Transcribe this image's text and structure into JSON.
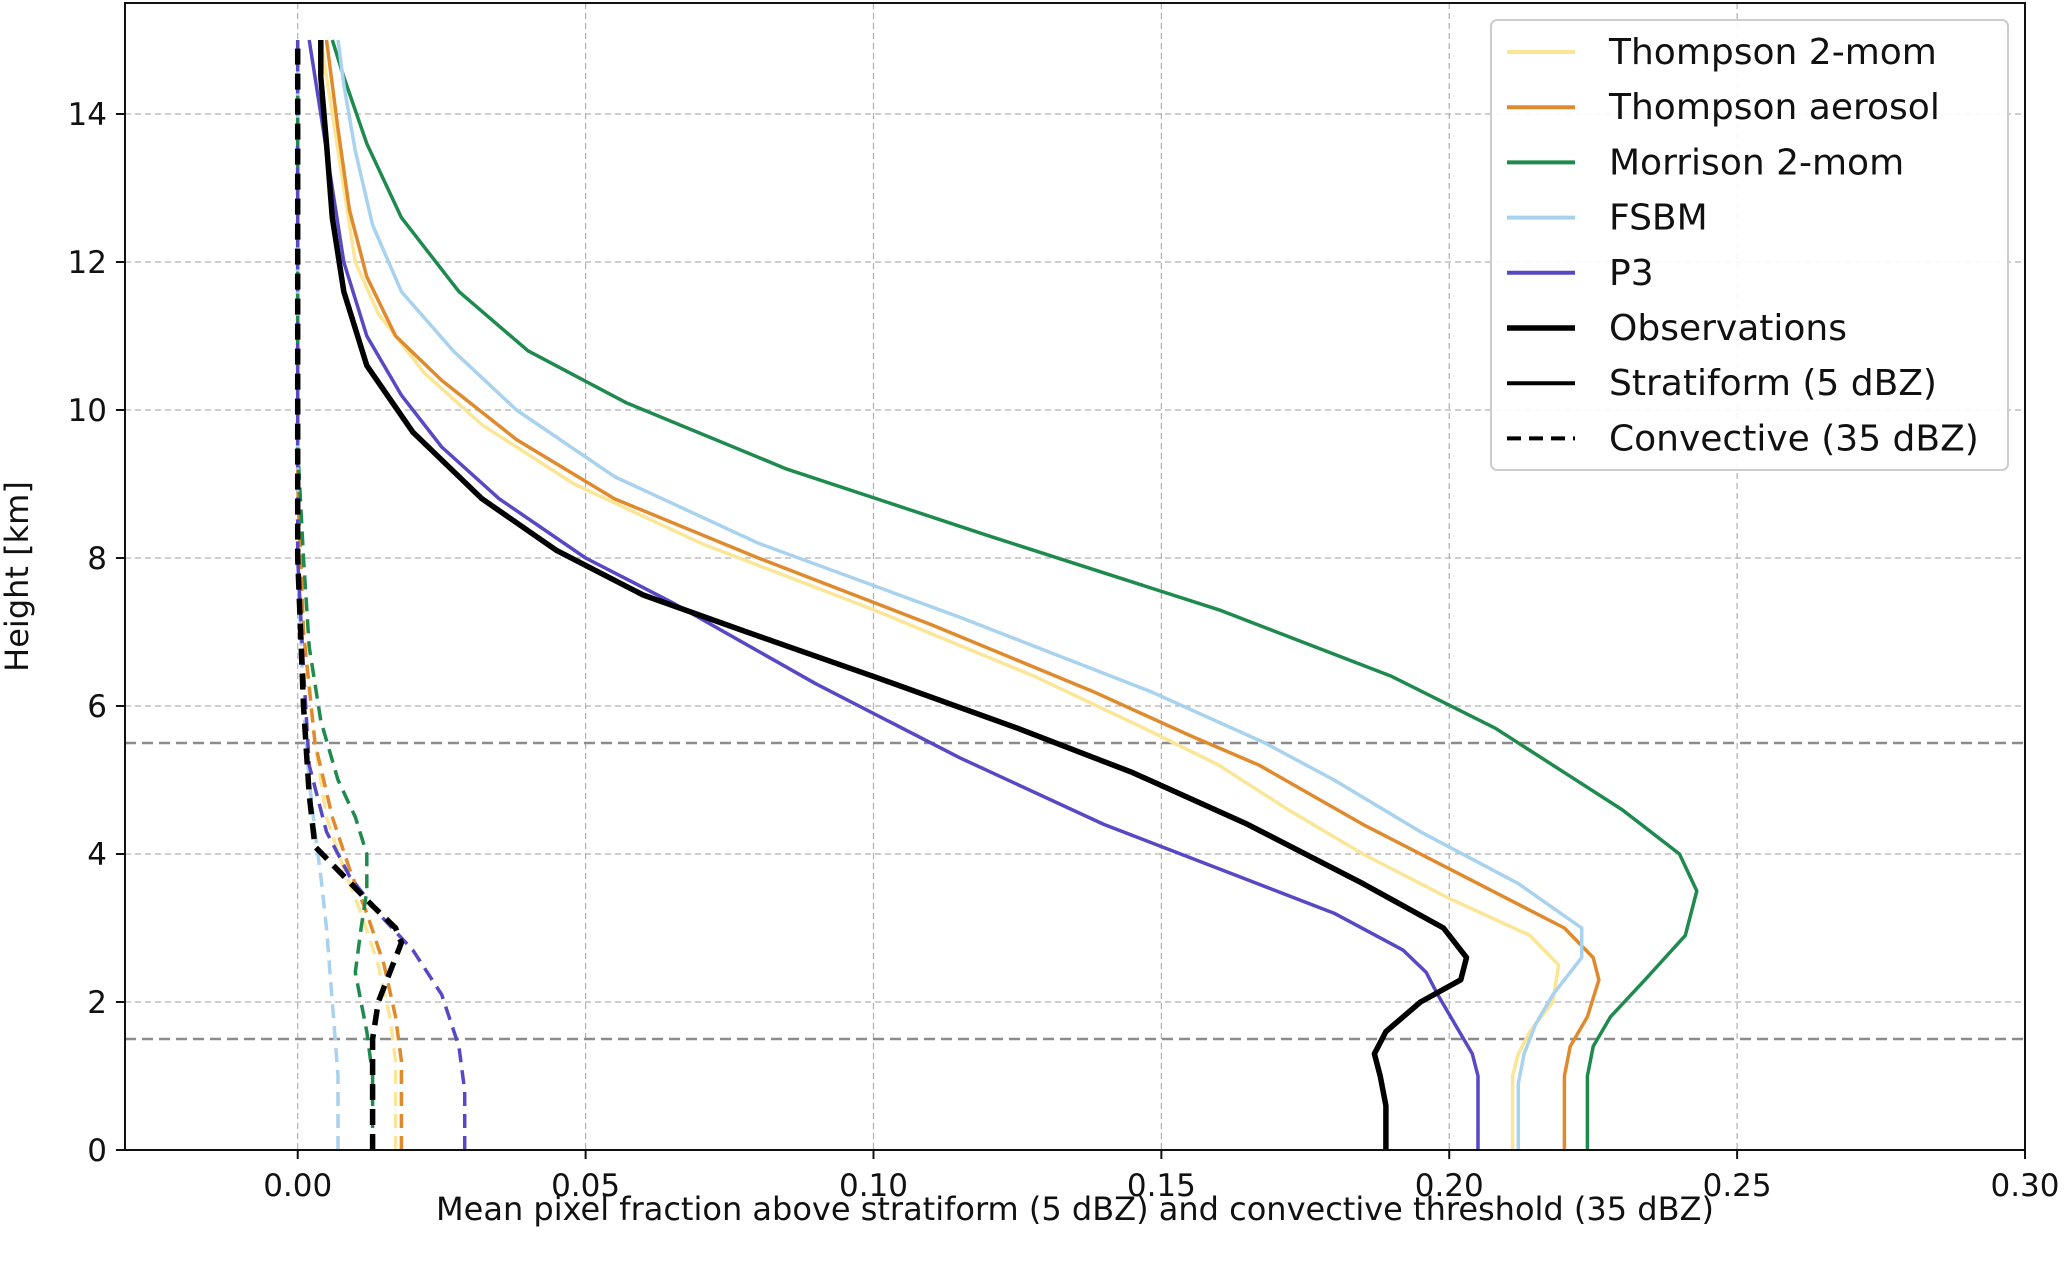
{
  "chart_data": {
    "type": "line",
    "xlabel": "Mean pixel fraction above stratiform (5 dBZ) and convective threshold (35 dBZ)",
    "ylabel": "Height [km]",
    "xlim": [
      -0.03,
      0.3
    ],
    "ylim": [
      0,
      15.5
    ],
    "xticks": [
      0.0,
      0.05,
      0.1,
      0.15,
      0.2,
      0.25,
      0.3
    ],
    "xtick_labels": [
      "0.00",
      "0.05",
      "0.10",
      "0.15",
      "0.20",
      "0.25",
      "0.30"
    ],
    "yticks": [
      0,
      2,
      4,
      6,
      8,
      10,
      12,
      14
    ],
    "ytick_labels": [
      "0",
      "2",
      "4",
      "6",
      "8",
      "10",
      "12",
      "14"
    ],
    "grid": true,
    "reference_lines_km": [
      1.5,
      5.5
    ],
    "legend_position": "top-right",
    "legend": [
      {
        "label": "Thompson 2-mom",
        "color": "#fbe697",
        "style": "solid"
      },
      {
        "label": "Thompson aerosol",
        "color": "#e08a2e",
        "style": "solid"
      },
      {
        "label": "Morrison 2-mom",
        "color": "#1f8a4e",
        "style": "solid"
      },
      {
        "label": "FSBM",
        "color": "#a8d2ee",
        "style": "solid"
      },
      {
        "label": "P3",
        "color": "#5748c6",
        "style": "solid"
      },
      {
        "label": "Observations",
        "color": "#000000",
        "style": "solid-thick"
      },
      {
        "label": "Stratiform (5 dBZ)",
        "color": "#000000",
        "style": "solid"
      },
      {
        "label": "Convective (35 dBZ)",
        "color": "#000000",
        "style": "dashed"
      }
    ],
    "series": [
      {
        "name": "Thompson 2-mom",
        "kind": "stratiform",
        "color": "#fbe697",
        "width": 3.5,
        "dash": "",
        "points": [
          [
            0.211,
            0
          ],
          [
            0.211,
            1.0
          ],
          [
            0.212,
            1.3
          ],
          [
            0.214,
            1.6
          ],
          [
            0.218,
            2.0
          ],
          [
            0.219,
            2.5
          ],
          [
            0.214,
            2.9
          ],
          [
            0.2,
            3.4
          ],
          [
            0.185,
            4.0
          ],
          [
            0.172,
            4.6
          ],
          [
            0.16,
            5.2
          ],
          [
            0.147,
            5.7
          ],
          [
            0.128,
            6.4
          ],
          [
            0.1,
            7.3
          ],
          [
            0.07,
            8.2
          ],
          [
            0.048,
            9.0
          ],
          [
            0.032,
            9.8
          ],
          [
            0.022,
            10.5
          ],
          [
            0.014,
            11.3
          ],
          [
            0.01,
            12.0
          ],
          [
            0.008,
            13.0
          ],
          [
            0.006,
            14.0
          ],
          [
            0.004,
            15.0
          ]
        ]
      },
      {
        "name": "Thompson aerosol",
        "kind": "stratiform",
        "color": "#e08a2e",
        "width": 3.5,
        "dash": "",
        "points": [
          [
            0.22,
            0
          ],
          [
            0.22,
            1.0
          ],
          [
            0.221,
            1.4
          ],
          [
            0.224,
            1.8
          ],
          [
            0.226,
            2.3
          ],
          [
            0.225,
            2.6
          ],
          [
            0.22,
            3.0
          ],
          [
            0.205,
            3.6
          ],
          [
            0.185,
            4.4
          ],
          [
            0.167,
            5.2
          ],
          [
            0.155,
            5.6
          ],
          [
            0.138,
            6.2
          ],
          [
            0.11,
            7.1
          ],
          [
            0.08,
            8.0
          ],
          [
            0.055,
            8.8
          ],
          [
            0.038,
            9.6
          ],
          [
            0.025,
            10.4
          ],
          [
            0.017,
            11.0
          ],
          [
            0.012,
            11.8
          ],
          [
            0.009,
            12.7
          ],
          [
            0.007,
            13.8
          ],
          [
            0.005,
            15.0
          ]
        ]
      },
      {
        "name": "Morrison 2-mom",
        "kind": "stratiform",
        "color": "#1f8a4e",
        "width": 3.5,
        "dash": "",
        "points": [
          [
            0.224,
            0
          ],
          [
            0.224,
            1.0
          ],
          [
            0.225,
            1.4
          ],
          [
            0.228,
            1.8
          ],
          [
            0.234,
            2.3
          ],
          [
            0.241,
            2.9
          ],
          [
            0.243,
            3.5
          ],
          [
            0.24,
            4.0
          ],
          [
            0.23,
            4.6
          ],
          [
            0.218,
            5.2
          ],
          [
            0.208,
            5.7
          ],
          [
            0.19,
            6.4
          ],
          [
            0.16,
            7.3
          ],
          [
            0.12,
            8.3
          ],
          [
            0.085,
            9.2
          ],
          [
            0.057,
            10.1
          ],
          [
            0.04,
            10.8
          ],
          [
            0.028,
            11.6
          ],
          [
            0.018,
            12.6
          ],
          [
            0.012,
            13.6
          ],
          [
            0.008,
            14.5
          ],
          [
            0.006,
            15.0
          ]
        ]
      },
      {
        "name": "FSBM",
        "kind": "stratiform",
        "color": "#a8d2ee",
        "width": 3.5,
        "dash": "",
        "points": [
          [
            0.212,
            0
          ],
          [
            0.212,
            0.9
          ],
          [
            0.213,
            1.3
          ],
          [
            0.215,
            1.7
          ],
          [
            0.218,
            2.1
          ],
          [
            0.223,
            2.6
          ],
          [
            0.223,
            3.0
          ],
          [
            0.212,
            3.6
          ],
          [
            0.195,
            4.3
          ],
          [
            0.18,
            5.0
          ],
          [
            0.168,
            5.5
          ],
          [
            0.148,
            6.2
          ],
          [
            0.115,
            7.2
          ],
          [
            0.08,
            8.2
          ],
          [
            0.055,
            9.1
          ],
          [
            0.038,
            10.0
          ],
          [
            0.027,
            10.8
          ],
          [
            0.018,
            11.6
          ],
          [
            0.013,
            12.5
          ],
          [
            0.01,
            13.5
          ],
          [
            0.008,
            14.4
          ],
          [
            0.007,
            15.0
          ]
        ]
      },
      {
        "name": "P3",
        "kind": "stratiform",
        "color": "#5748c6",
        "width": 3.5,
        "dash": "",
        "points": [
          [
            0.205,
            0
          ],
          [
            0.205,
            1.0
          ],
          [
            0.204,
            1.3
          ],
          [
            0.201,
            1.7
          ],
          [
            0.198,
            2.1
          ],
          [
            0.196,
            2.4
          ],
          [
            0.192,
            2.7
          ],
          [
            0.18,
            3.2
          ],
          [
            0.16,
            3.8
          ],
          [
            0.14,
            4.4
          ],
          [
            0.115,
            5.3
          ],
          [
            0.09,
            6.3
          ],
          [
            0.065,
            7.4
          ],
          [
            0.05,
            8.0
          ],
          [
            0.035,
            8.8
          ],
          [
            0.025,
            9.5
          ],
          [
            0.018,
            10.2
          ],
          [
            0.012,
            11.0
          ],
          [
            0.008,
            12.0
          ],
          [
            0.006,
            13.0
          ],
          [
            0.004,
            14.0
          ],
          [
            0.002,
            15.0
          ]
        ]
      },
      {
        "name": "Observations",
        "kind": "stratiform",
        "color": "#000000",
        "width": 5.5,
        "dash": "",
        "points": [
          [
            0.189,
            0
          ],
          [
            0.189,
            0.6
          ],
          [
            0.188,
            1.0
          ],
          [
            0.187,
            1.3
          ],
          [
            0.189,
            1.6
          ],
          [
            0.195,
            2.0
          ],
          [
            0.202,
            2.3
          ],
          [
            0.203,
            2.6
          ],
          [
            0.199,
            3.0
          ],
          [
            0.185,
            3.6
          ],
          [
            0.165,
            4.4
          ],
          [
            0.145,
            5.1
          ],
          [
            0.125,
            5.7
          ],
          [
            0.1,
            6.4
          ],
          [
            0.078,
            7.0
          ],
          [
            0.06,
            7.5
          ],
          [
            0.045,
            8.1
          ],
          [
            0.032,
            8.8
          ],
          [
            0.02,
            9.7
          ],
          [
            0.012,
            10.6
          ],
          [
            0.008,
            11.6
          ],
          [
            0.006,
            12.6
          ],
          [
            0.005,
            13.6
          ],
          [
            0.004,
            14.5
          ],
          [
            0.004,
            15.0
          ]
        ]
      },
      {
        "name": "Thompson 2-mom",
        "kind": "convective",
        "color": "#fbe697",
        "width": 3.5,
        "dash": "14,8",
        "points": [
          [
            0.017,
            0
          ],
          [
            0.017,
            1.2
          ],
          [
            0.016,
            1.8
          ],
          [
            0.014,
            2.5
          ],
          [
            0.011,
            3.2
          ],
          [
            0.008,
            3.8
          ],
          [
            0.005,
            4.5
          ],
          [
            0.003,
            5.5
          ],
          [
            0.001,
            7.0
          ],
          [
            0.0,
            9.0
          ],
          [
            0.0,
            15.0
          ]
        ]
      },
      {
        "name": "Thompson aerosol",
        "kind": "convective",
        "color": "#e08a2e",
        "width": 3.5,
        "dash": "14,8",
        "points": [
          [
            0.018,
            0
          ],
          [
            0.018,
            1.2
          ],
          [
            0.017,
            1.8
          ],
          [
            0.015,
            2.5
          ],
          [
            0.012,
            3.2
          ],
          [
            0.009,
            3.8
          ],
          [
            0.006,
            4.5
          ],
          [
            0.003,
            5.5
          ],
          [
            0.001,
            7.0
          ],
          [
            0.0,
            9.0
          ],
          [
            0.0,
            15.0
          ]
        ]
      },
      {
        "name": "Morrison 2-mom",
        "kind": "convective",
        "color": "#1f8a4e",
        "width": 3.5,
        "dash": "14,8",
        "points": [
          [
            0.013,
            0
          ],
          [
            0.013,
            1.0
          ],
          [
            0.012,
            1.6
          ],
          [
            0.01,
            2.4
          ],
          [
            0.011,
            3.0
          ],
          [
            0.012,
            3.5
          ],
          [
            0.012,
            4.0
          ],
          [
            0.01,
            4.5
          ],
          [
            0.007,
            5.0
          ],
          [
            0.004,
            5.8
          ],
          [
            0.002,
            6.8
          ],
          [
            0.001,
            8.0
          ],
          [
            0.0,
            9.5
          ],
          [
            0.0,
            15.0
          ]
        ]
      },
      {
        "name": "FSBM",
        "kind": "convective",
        "color": "#a8d2ee",
        "width": 3.5,
        "dash": "14,8",
        "points": [
          [
            0.007,
            0
          ],
          [
            0.007,
            1.0
          ],
          [
            0.006,
            2.0
          ],
          [
            0.005,
            3.0
          ],
          [
            0.004,
            3.7
          ],
          [
            0.003,
            4.3
          ],
          [
            0.002,
            5.0
          ],
          [
            0.001,
            6.0
          ],
          [
            0.0,
            8.0
          ],
          [
            0.0,
            15.0
          ]
        ]
      },
      {
        "name": "P3",
        "kind": "convective",
        "color": "#5748c6",
        "width": 3.5,
        "dash": "14,8",
        "points": [
          [
            0.029,
            0
          ],
          [
            0.029,
            0.8
          ],
          [
            0.028,
            1.4
          ],
          [
            0.025,
            2.1
          ],
          [
            0.02,
            2.7
          ],
          [
            0.014,
            3.2
          ],
          [
            0.009,
            3.7
          ],
          [
            0.005,
            4.3
          ],
          [
            0.002,
            5.2
          ],
          [
            0.001,
            6.5
          ],
          [
            0.0,
            8.0
          ],
          [
            0.0,
            15.0
          ]
        ]
      },
      {
        "name": "Observations",
        "kind": "convective",
        "color": "#000000",
        "width": 5.5,
        "dash": "16,9",
        "points": [
          [
            0.013,
            0
          ],
          [
            0.013,
            1.0
          ],
          [
            0.013,
            1.5
          ],
          [
            0.014,
            2.0
          ],
          [
            0.016,
            2.4
          ],
          [
            0.018,
            2.8
          ],
          [
            0.017,
            3.0
          ],
          [
            0.013,
            3.3
          ],
          [
            0.008,
            3.7
          ],
          [
            0.003,
            4.1
          ],
          [
            0.002,
            4.8
          ],
          [
            0.001,
            6.0
          ],
          [
            0.0,
            8.0
          ],
          [
            0.0,
            15.0
          ]
        ]
      }
    ]
  }
}
